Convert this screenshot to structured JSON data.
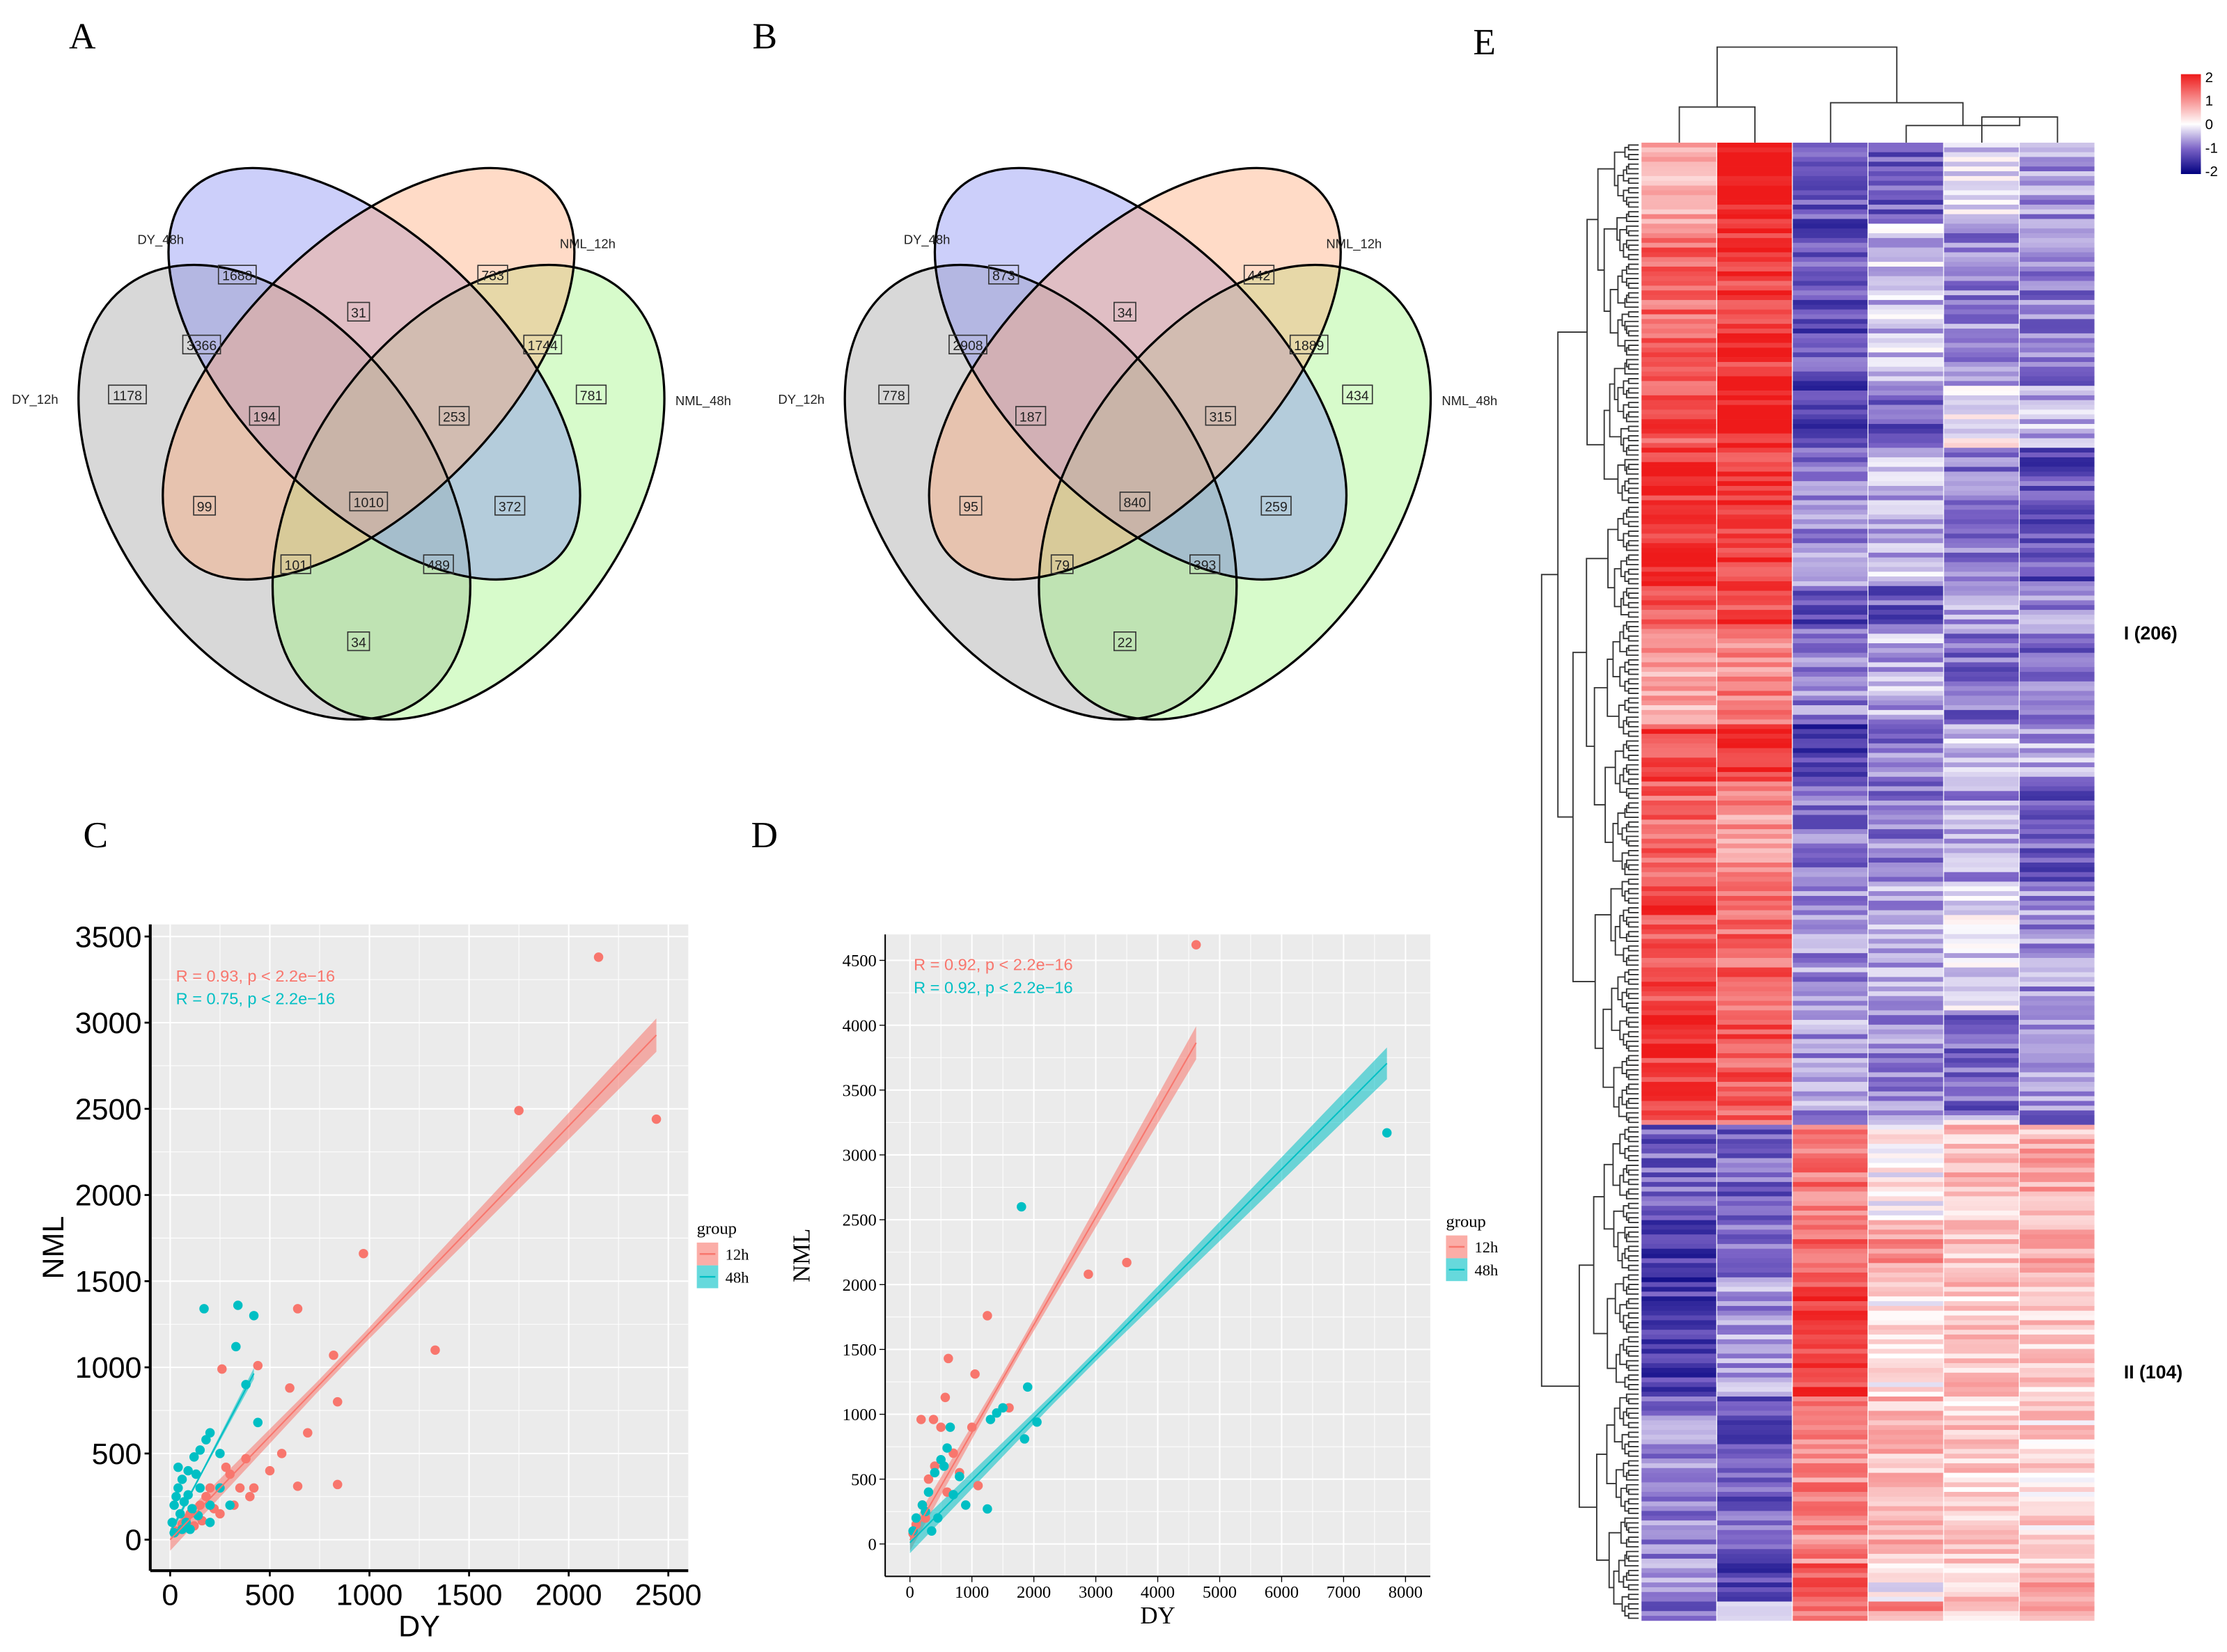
{
  "panel_letters": {
    "A": "A",
    "B": "B",
    "C": "C",
    "D": "D",
    "E": "E"
  },
  "venn": [
    {
      "set_labels": {
        "dy48": "DY_48h",
        "nml12": "NML_12h",
        "dy12": "DY_12h",
        "nml48": "NML_48h"
      },
      "counts": {
        "dy48": "1688",
        "nml12": "733",
        "dy48_nml12": "31",
        "dy12_dy48": "3366",
        "nml12_nml48": "1744",
        "dy12": "1178",
        "nml48": "781",
        "dy12_dy48_nml12": "194",
        "dy48_nml12_nml48": "253",
        "dy12_nml12": "99",
        "all": "1010",
        "dy48_nml48": "372",
        "dy12_nml12_nml48": "101",
        "dy12_dy48_nml48": "489",
        "dy12_nml48": "34"
      }
    },
    {
      "set_labels": {
        "dy48": "DY_48h",
        "nml12": "NML_12h",
        "dy12": "DY_12h",
        "nml48": "NML_48h"
      },
      "counts": {
        "dy48": "873",
        "nml12": "442",
        "dy48_nml12": "34",
        "dy12_dy48": "2908",
        "nml12_nml48": "1889",
        "dy12": "778",
        "nml48": "434",
        "dy12_dy48_nml12": "187",
        "dy48_nml12_nml48": "315",
        "dy12_nml12": "95",
        "all": "840",
        "dy48_nml48": "259",
        "dy12_nml12_nml48": "79",
        "dy12_dy48_nml48": "393",
        "dy12_nml48": "22"
      }
    }
  ],
  "chart_data": [
    {
      "type": "scatter",
      "panel": "C",
      "xlabel": "DY",
      "ylabel": "NML",
      "xlim": [
        -100,
        2600
      ],
      "ylim": [
        -180,
        3570
      ],
      "xticks": [
        "0",
        "500",
        "1000",
        "1500",
        "2000",
        "2500"
      ],
      "yticks": [
        "0",
        "500",
        "1000",
        "1500",
        "2000",
        "2500",
        "3000",
        "3500"
      ],
      "grid": true,
      "legend": {
        "title": "group",
        "position": "right",
        "entries": [
          "12h",
          "48h"
        ]
      },
      "colors": {
        "12h": "#f8766d",
        "48h": "#00bfc4"
      },
      "series": [
        {
          "name": "12h",
          "annotation": "R = 0.93, p < 2.2e−16",
          "fit": {
            "slope": 1.2,
            "intercept": 0,
            "xmax": 2440
          },
          "points": [
            [
              2150,
              3380
            ],
            [
              1750,
              2490
            ],
            [
              2440,
              2440
            ],
            [
              970,
              1660
            ],
            [
              1330,
              1100
            ],
            [
              640,
              1340
            ],
            [
              600,
              880
            ],
            [
              820,
              1070
            ],
            [
              840,
              800
            ],
            [
              690,
              620
            ],
            [
              840,
              320
            ],
            [
              640,
              310
            ],
            [
              440,
              1010
            ],
            [
              260,
              990
            ],
            [
              560,
              500
            ],
            [
              380,
              470
            ],
            [
              300,
              380
            ],
            [
              200,
              300
            ],
            [
              150,
              200
            ],
            [
              100,
              150
            ],
            [
              60,
              90
            ],
            [
              30,
              50
            ],
            [
              400,
              250
            ],
            [
              250,
              150
            ],
            [
              350,
              300
            ],
            [
              120,
              80
            ],
            [
              500,
              400
            ],
            [
              180,
              250
            ],
            [
              320,
              200
            ],
            [
              80,
              120
            ],
            [
              420,
              300
            ],
            [
              280,
              420
            ],
            [
              220,
              180
            ],
            [
              160,
              110
            ]
          ]
        },
        {
          "name": "48h",
          "annotation": "R = 0.75, p < 2.2e−16",
          "fit": {
            "slope": 2.2,
            "intercept": 40,
            "xmax": 420
          },
          "points": [
            [
              170,
              1340
            ],
            [
              340,
              1360
            ],
            [
              420,
              1300
            ],
            [
              330,
              1120
            ],
            [
              380,
              900
            ],
            [
              440,
              680
            ],
            [
              200,
              620
            ],
            [
              180,
              580
            ],
            [
              150,
              520
            ],
            [
              120,
              480
            ],
            [
              90,
              400
            ],
            [
              60,
              350
            ],
            [
              40,
              300
            ],
            [
              30,
              250
            ],
            [
              20,
              200
            ],
            [
              50,
              150
            ],
            [
              80,
              100
            ],
            [
              100,
              60
            ],
            [
              200,
              200
            ],
            [
              250,
              300
            ],
            [
              150,
              300
            ],
            [
              70,
              220
            ],
            [
              110,
              180
            ],
            [
              300,
              200
            ],
            [
              130,
              380
            ],
            [
              60,
              60
            ],
            [
              200,
              100
            ],
            [
              250,
              500
            ],
            [
              40,
              420
            ],
            [
              10,
              100
            ],
            [
              20,
              40
            ],
            [
              90,
              260
            ],
            [
              140,
              140
            ]
          ]
        }
      ]
    },
    {
      "type": "scatter",
      "panel": "D",
      "xlabel": "DY",
      "ylabel": "NML",
      "xlim": [
        -400,
        8400
      ],
      "ylim": [
        -250,
        4700
      ],
      "xticks": [
        "0",
        "1000",
        "2000",
        "3000",
        "4000",
        "5000",
        "6000",
        "7000",
        "8000"
      ],
      "yticks": [
        "0",
        "500",
        "1000",
        "1500",
        "2000",
        "2500",
        "3000",
        "3500",
        "4000",
        "4500"
      ],
      "grid": true,
      "legend": {
        "title": "group",
        "position": "right",
        "entries": [
          "12h",
          "48h"
        ]
      },
      "colors": {
        "12h": "#f8766d",
        "48h": "#00bfc4"
      },
      "series": [
        {
          "name": "12h",
          "annotation": "R = 0.92, p < 2.2e−16",
          "fit": {
            "slope": 0.83,
            "intercept": 30,
            "xmax": 4620
          },
          "points": [
            [
              4620,
              4620
            ],
            [
              3500,
              2170
            ],
            [
              2880,
              2080
            ],
            [
              1250,
              1760
            ],
            [
              620,
              1430
            ],
            [
              1050,
              1310
            ],
            [
              570,
              1130
            ],
            [
              380,
              960
            ],
            [
              180,
              960
            ],
            [
              500,
              900
            ],
            [
              1000,
              900
            ],
            [
              1600,
              1050
            ],
            [
              700,
              700
            ],
            [
              300,
              500
            ],
            [
              200,
              300
            ],
            [
              100,
              150
            ],
            [
              50,
              80
            ],
            [
              400,
              600
            ],
            [
              800,
              550
            ],
            [
              1100,
              450
            ],
            [
              250,
              200
            ],
            [
              600,
              400
            ]
          ]
        },
        {
          "name": "48h",
          "annotation": "R = 0.92, p < 2.2e−16",
          "fit": {
            "slope": 0.48,
            "intercept": 10,
            "xmax": 7700
          },
          "points": [
            [
              7700,
              3170
            ],
            [
              1800,
              2600
            ],
            [
              1500,
              1050
            ],
            [
              1900,
              1210
            ],
            [
              2050,
              940
            ],
            [
              1850,
              810
            ],
            [
              1300,
              960
            ],
            [
              1400,
              1010
            ],
            [
              1250,
              270
            ],
            [
              800,
              520
            ],
            [
              600,
              740
            ],
            [
              500,
              650
            ],
            [
              400,
              550
            ],
            [
              300,
              400
            ],
            [
              200,
              300
            ],
            [
              100,
              200
            ],
            [
              50,
              100
            ],
            [
              700,
              380
            ],
            [
              900,
              300
            ],
            [
              450,
              200
            ],
            [
              350,
              100
            ],
            [
              650,
              900
            ],
            [
              550,
              600
            ],
            [
              250,
              250
            ]
          ]
        }
      ]
    },
    {
      "type": "heatmap",
      "panel": "E",
      "columns": 6,
      "colorbar": {
        "ticks": [
          "2",
          "1",
          "0",
          "-1",
          "-2"
        ],
        "range": [
          -2,
          2
        ],
        "colors": {
          "high": "#ee1a1a",
          "mid": "#ffffff",
          "low_mid": "#7a62c6",
          "low": "#00007f"
        }
      },
      "clusters": [
        {
          "label": "I (206)",
          "rows": 206,
          "column_means": [
            1.3,
            1.5,
            -0.9,
            -0.8,
            -0.5,
            -0.7
          ]
        },
        {
          "label": "II (104)",
          "rows": 104,
          "column_means": [
            -1.0,
            -1.1,
            1.3,
            0.4,
            0.2,
            0.4
          ]
        }
      ]
    }
  ]
}
